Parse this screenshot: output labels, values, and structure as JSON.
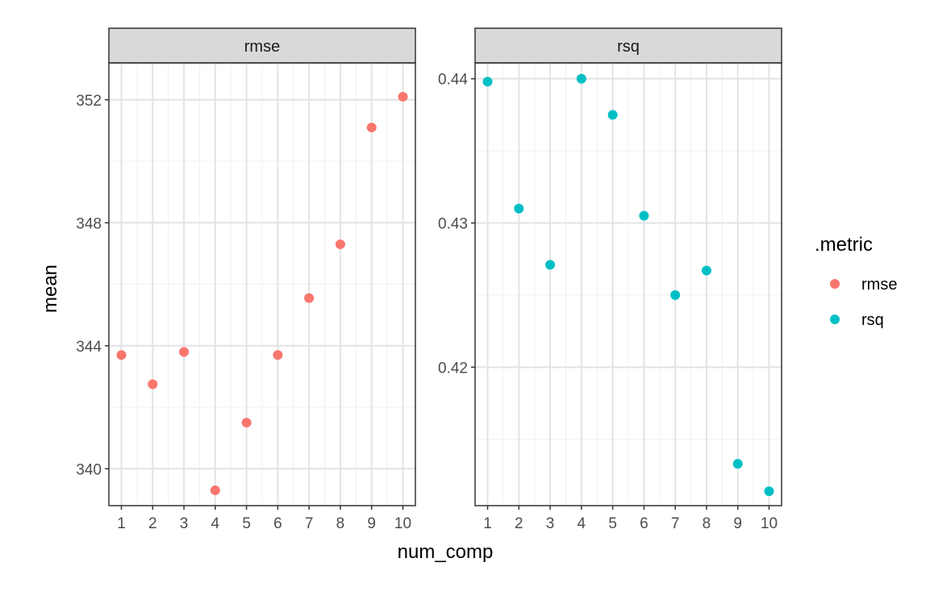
{
  "chart_data": {
    "type": "scatter",
    "xlabel": "num_comp",
    "ylabel": "mean",
    "x_ticks": [
      1,
      2,
      3,
      4,
      5,
      6,
      7,
      8,
      9,
      10
    ],
    "grid": true,
    "legend": {
      "title": ".metric",
      "position": "right",
      "entries": [
        {
          "label": "rmse",
          "color": "#F8766D"
        },
        {
          "label": "rsq",
          "color": "#00BFC4"
        }
      ]
    },
    "panels": [
      {
        "strip_label": "rmse",
        "series": "rmse",
        "color": "#F8766D",
        "x": [
          1,
          2,
          3,
          4,
          5,
          6,
          7,
          8,
          9,
          10
        ],
        "y": [
          343.7,
          342.75,
          343.8,
          339.3,
          341.5,
          343.7,
          345.55,
          347.3,
          351.1,
          352.1
        ],
        "ylim": [
          338.8,
          353.2
        ],
        "y_ticks": [
          340,
          344,
          348,
          352
        ],
        "y_tick_labels": [
          "340",
          "344",
          "348",
          "352"
        ]
      },
      {
        "strip_label": "rsq",
        "series": "rsq",
        "color": "#00BFC4",
        "x": [
          1,
          2,
          3,
          4,
          5,
          6,
          7,
          8,
          9,
          10
        ],
        "y": [
          0.4398,
          0.431,
          0.4271,
          0.44,
          0.4375,
          0.4305,
          0.425,
          0.4267,
          0.4133,
          0.4114
        ],
        "ylim": [
          0.4104,
          0.4411
        ],
        "y_ticks": [
          0.42,
          0.43,
          0.44
        ],
        "y_tick_labels": [
          "0.42",
          "0.43",
          "0.44"
        ]
      }
    ]
  }
}
